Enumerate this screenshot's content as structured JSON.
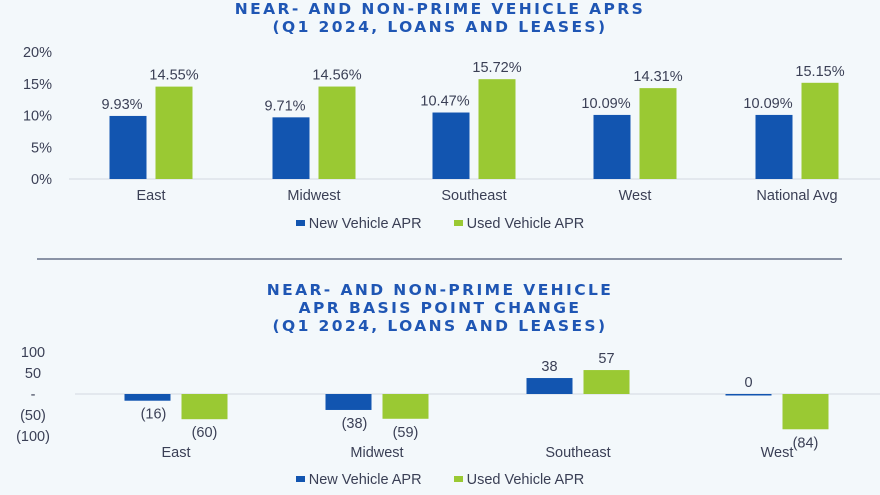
{
  "colors": {
    "new": "#1255b0",
    "used": "#9ac933",
    "title": "#1f56b4",
    "text": "#3a3f55",
    "axis": "#d3d8e0"
  },
  "chart_data": [
    {
      "type": "bar",
      "title": "NEAR- AND NON-PRIME VEHICLE APRS",
      "subtitle": "(Q1 2024, LOANS AND LEASES)",
      "categories": [
        "East",
        "Midwest",
        "Southeast",
        "West",
        "National Avg"
      ],
      "series": [
        {
          "name": "New Vehicle APR",
          "values": [
            9.93,
            9.71,
            10.47,
            10.09,
            10.09
          ],
          "labels": [
            "9.93%",
            "9.71%",
            "10.47%",
            "10.09%",
            "10.09%"
          ]
        },
        {
          "name": "Used Vehicle APR",
          "values": [
            14.55,
            14.56,
            15.72,
            14.31,
            15.15
          ],
          "labels": [
            "14.55%",
            "14.56%",
            "15.72%",
            "14.31%",
            "15.15%"
          ]
        }
      ],
      "yticks": [
        "0%",
        "5%",
        "10%",
        "15%",
        "20%"
      ],
      "ytick_values": [
        0,
        5,
        10,
        15,
        20
      ],
      "ylim": [
        0,
        20
      ],
      "xlabel": "",
      "ylabel": "",
      "legend": "bottom",
      "grid": false
    },
    {
      "type": "bar",
      "title": "NEAR- AND NON-PRIME VEHICLE APR BASIS POINT CHANGE",
      "title_lines": [
        "NEAR- AND NON-PRIME VEHICLE",
        "APR BASIS POINT CHANGE",
        "(Q1 2024, LOANS AND LEASES)"
      ],
      "categories": [
        "East",
        "Midwest",
        "Southeast",
        "West"
      ],
      "series": [
        {
          "name": "New Vehicle APR",
          "values": [
            -16,
            -38,
            38,
            0
          ],
          "labels": [
            "(16)",
            "(38)",
            "38",
            "0"
          ]
        },
        {
          "name": "Used Vehicle APR",
          "values": [
            -60,
            -59,
            57,
            -84
          ],
          "labels": [
            "(60)",
            "(59)",
            "57",
            "(84)"
          ]
        }
      ],
      "yticks": [
        "100",
        "50",
        "-",
        "(50)",
        "(100)"
      ],
      "ytick_values": [
        100,
        50,
        0,
        -50,
        -100
      ],
      "ylim": [
        -100,
        100
      ],
      "xlabel": "",
      "ylabel": "",
      "legend": "bottom",
      "grid": false
    }
  ],
  "titles": {
    "top": [
      "NEAR- AND NON-PRIME VEHICLE APRS",
      "(Q1 2024, LOANS AND LEASES)"
    ],
    "bottom": [
      "NEAR- AND NON-PRIME VEHICLE",
      "APR BASIS POINT CHANGE",
      "(Q1 2024, LOANS AND LEASES)"
    ]
  },
  "legend": {
    "new_label": "New Vehicle APR",
    "used_label": "Used Vehicle APR"
  }
}
